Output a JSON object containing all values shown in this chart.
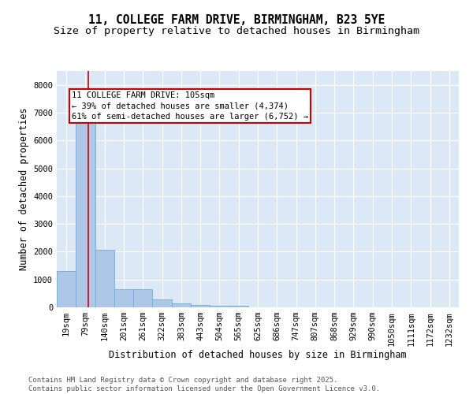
{
  "title1": "11, COLLEGE FARM DRIVE, BIRMINGHAM, B23 5YE",
  "title2": "Size of property relative to detached houses in Birmingham",
  "xlabel": "Distribution of detached houses by size in Birmingham",
  "ylabel": "Number of detached properties",
  "bar_color": "#aec6e8",
  "bar_edge_color": "#6baed6",
  "background_color": "#dce8f5",
  "grid_color": "#ffffff",
  "categories": [
    "19sqm",
    "79sqm",
    "140sqm",
    "201sqm",
    "261sqm",
    "322sqm",
    "383sqm",
    "443sqm",
    "504sqm",
    "565sqm",
    "625sqm",
    "686sqm",
    "747sqm",
    "807sqm",
    "868sqm",
    "929sqm",
    "990sqm",
    "1050sqm",
    "1111sqm",
    "1172sqm",
    "1232sqm"
  ],
  "values": [
    1300,
    6620,
    2060,
    650,
    645,
    295,
    130,
    85,
    45,
    45,
    0,
    0,
    0,
    0,
    0,
    0,
    0,
    0,
    0,
    0,
    0
  ],
  "ylim": [
    0,
    8500
  ],
  "yticks": [
    0,
    1000,
    2000,
    3000,
    4000,
    5000,
    6000,
    7000,
    8000
  ],
  "property_line_x": 1.14,
  "property_line_color": "#cc0000",
  "annotation_text": "11 COLLEGE FARM DRIVE: 105sqm\n← 39% of detached houses are smaller (4,374)\n61% of semi-detached houses are larger (6,752) →",
  "footer_text": "Contains HM Land Registry data © Crown copyright and database right 2025.\nContains public sector information licensed under the Open Government Licence v3.0.",
  "title1_fontsize": 10.5,
  "title2_fontsize": 9.5,
  "xlabel_fontsize": 8.5,
  "ylabel_fontsize": 8.5,
  "tick_fontsize": 7.5,
  "annotation_fontsize": 7.5,
  "footer_fontsize": 6.5
}
